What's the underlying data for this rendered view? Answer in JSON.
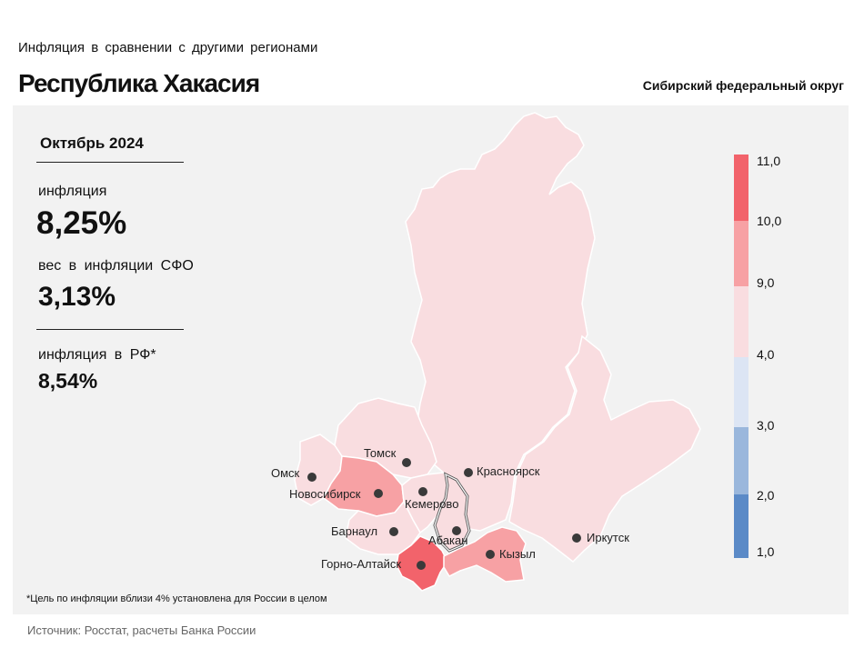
{
  "header": {
    "subtitle": "Инфляция в сравнении с другими регионами",
    "region": "Республика Хакасия",
    "district": "Сибирский федеральный округ"
  },
  "stats": {
    "period": "Октябрь 2024",
    "inflation_label": "инфляция",
    "inflation_value": "8,25%",
    "weight_label": "вес в инфляции СФО",
    "weight_value": "3,13%",
    "rf_label": "инфляция в РФ*",
    "rf_value": "8,54%"
  },
  "map": {
    "cities": [
      {
        "name": "Томск"
      },
      {
        "name": "Омск"
      },
      {
        "name": "Новосибирск"
      },
      {
        "name": "Кемерово"
      },
      {
        "name": "Красноярск"
      },
      {
        "name": "Барнаул"
      },
      {
        "name": "Абакан"
      },
      {
        "name": "Горно-Алтайск"
      },
      {
        "name": "Кызыл"
      },
      {
        "name": "Иркутск"
      }
    ],
    "colors": {
      "band_9_10": "#f7a1a4",
      "band_10_11": "#f2636b",
      "band_4_9": "#f9dde0",
      "band_3_4": "#dce5f4",
      "band_2_3": "#9ab7dc",
      "band_1_2": "#5b8ac7",
      "highlight_border": "#ffffff"
    }
  },
  "legend": {
    "ticks": [
      "11,0",
      "10,0",
      "9,0",
      "4,0",
      "3,0",
      "2,0",
      "1,0"
    ]
  },
  "footnote": "*Цель по инфляции вблизи 4% установлена для России в целом",
  "source": "Источник: Росстат, расчеты Банка России"
}
